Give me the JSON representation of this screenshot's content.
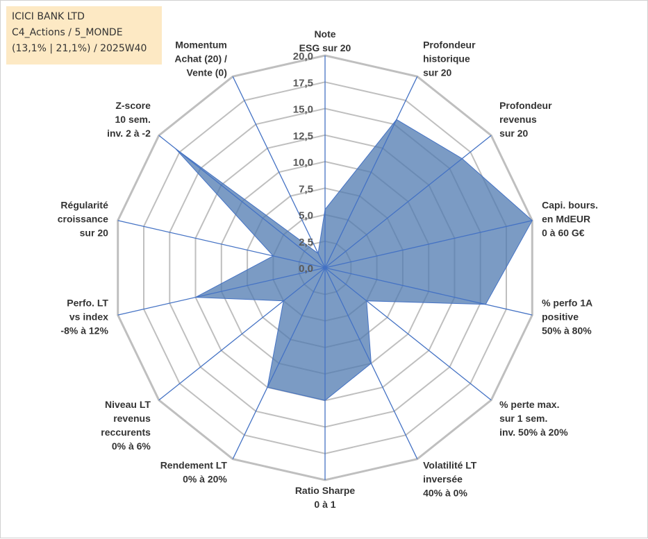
{
  "info": {
    "line1": "ICICI BANK LTD",
    "line2": "C4_Actions / 5_MONDE",
    "line3": "(13,1% | 21,1%) / 2025W40"
  },
  "chart_data": {
    "type": "radar",
    "title": "ICICI BANK LTD",
    "rmin": 0,
    "rmax": 20,
    "ticks": [
      "0,0",
      "2,5",
      "5,0",
      "7,5",
      "10,0",
      "12,5",
      "15,0",
      "17,5",
      "20,0"
    ],
    "axes": [
      {
        "label": [
          "Note",
          "ESG sur 20"
        ],
        "value": 5.5
      },
      {
        "label": [
          "Profondeur",
          "historique",
          "sur 20"
        ],
        "value": 15.5
      },
      {
        "label": [
          "Profondeur",
          "revenus",
          "sur 20"
        ],
        "value": 16.5
      },
      {
        "label": [
          "Capi. bours.",
          "en MdEUR",
          "0 à 60 G€"
        ],
        "value": 20.0
      },
      {
        "label": [
          "% perfo 1A",
          "positive",
          "50% à 80%"
        ],
        "value": 15.5
      },
      {
        "label": [
          "% perte max.",
          "sur 1 sem.",
          "inv. 50% à 20%"
        ],
        "value": 5.0
      },
      {
        "label": [
          "Volatilité LT",
          "inversée",
          "40% à 0%"
        ],
        "value": 10.0
      },
      {
        "label": [
          "Ratio Sharpe",
          "0 à 1"
        ],
        "value": 12.5
      },
      {
        "label": [
          "Rendement LT",
          "0% à 20%"
        ],
        "value": 12.5
      },
      {
        "label": [
          "Niveau LT",
          "revenus",
          "reccurents",
          "0% à 6%"
        ],
        "value": 5.0
      },
      {
        "label": [
          "Perfo. LT",
          "vs index",
          "-8% à 12%"
        ],
        "value": 12.5
      },
      {
        "label": [
          "Régularité",
          "croissance",
          "sur 20"
        ],
        "value": 5.0
      },
      {
        "label": [
          "Z-score",
          "10 sem.",
          "inv. 2 à -2"
        ],
        "value": 18.0
      },
      {
        "label": [
          "Momentum",
          "Achat (20) /",
          "Vente (0)"
        ],
        "value": 1.5
      }
    ],
    "colors": {
      "fill": "#4f7ab0",
      "fill_opacity": "0.75",
      "series_line": "#4472c4",
      "grid": "#bfbfbf",
      "spoke": "#4472c4"
    }
  }
}
